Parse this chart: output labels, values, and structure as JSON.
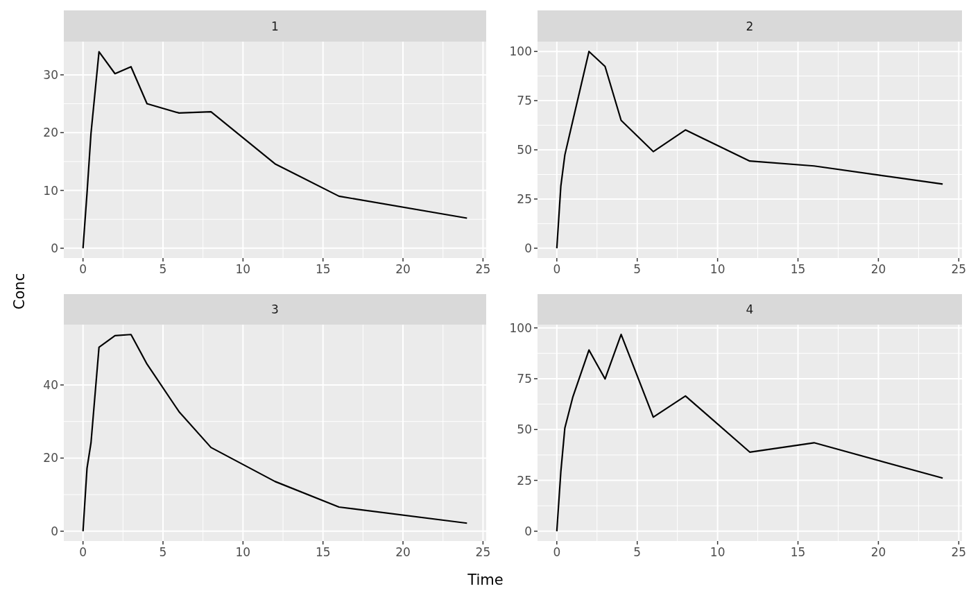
{
  "chart_data": [
    {
      "type": "line",
      "title": "1",
      "ylabel": "Conc",
      "x": [
        0,
        0.25,
        0.5,
        1,
        2,
        3,
        4,
        6,
        8,
        12,
        16,
        24
      ],
      "series": [
        {
          "color": "#000000",
          "values": [
            0,
            9.5,
            19.9,
            34.0,
            30.2,
            31.4,
            25.0,
            23.4,
            23.6,
            14.6,
            9.0,
            5.2
          ]
        }
      ],
      "xlim": [
        -1.2,
        25.2
      ],
      "xticks": [
        0,
        5,
        10,
        15,
        20,
        25
      ],
      "ylim": [
        -1.7,
        35.75
      ],
      "yticks": [
        0,
        10,
        20,
        30
      ],
      "grid": true
    },
    {
      "type": "line",
      "title": "2",
      "x": [
        0,
        0.25,
        0.5,
        1,
        2,
        3,
        4,
        6,
        8,
        12,
        16,
        24
      ],
      "series": [
        {
          "color": "#000000",
          "values": [
            0,
            31.5,
            47.4,
            65,
            100,
            92.4,
            65.0,
            49.1,
            60.1,
            44.3,
            41.8,
            32.6
          ]
        }
      ],
      "xlim": [
        -1.2,
        25.2
      ],
      "xticks": [
        0,
        5,
        10,
        15,
        20,
        25
      ],
      "ylim": [
        -5,
        105
      ],
      "yticks": [
        0,
        25,
        50,
        75,
        100
      ],
      "grid": true
    },
    {
      "type": "line",
      "title": "3",
      "xlabel": "Time",
      "x": [
        0,
        0.25,
        0.5,
        1,
        2,
        3,
        4,
        6,
        8,
        12,
        16,
        24
      ],
      "series": [
        {
          "color": "#000000",
          "values": [
            0,
            17.2,
            24.2,
            50.3,
            53.5,
            53.8,
            45.7,
            32.7,
            22.9,
            13.6,
            6.6,
            2.2
          ]
        }
      ],
      "xlim": [
        -1.2,
        25.2
      ],
      "xticks": [
        0,
        5,
        10,
        15,
        20,
        25
      ],
      "ylim": [
        -2.69,
        56.5
      ],
      "yticks": [
        0,
        20,
        40
      ],
      "grid": true
    },
    {
      "type": "line",
      "title": "4",
      "x": [
        0,
        0.25,
        0.5,
        1,
        2,
        3,
        4,
        6,
        8,
        12,
        16,
        24
      ],
      "series": [
        {
          "color": "#000000",
          "values": [
            0,
            29.2,
            50.8,
            66.1,
            89.1,
            74.9,
            96.8,
            56.1,
            66.5,
            38.9,
            43.5,
            26.1
          ]
        }
      ],
      "xlim": [
        -1.2,
        25.2
      ],
      "xticks": [
        0,
        5,
        10,
        15,
        20,
        25
      ],
      "ylim": [
        -4.84,
        101.6
      ],
      "yticks": [
        0,
        25,
        50,
        75,
        100
      ],
      "grid": true
    }
  ]
}
